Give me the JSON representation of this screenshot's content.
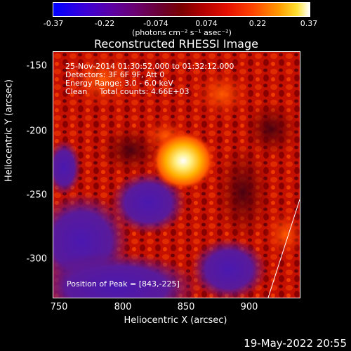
{
  "colorbar": {
    "ticks": [
      "-0.37",
      "-0.22",
      "-0.074",
      "0.074",
      "0.22",
      "0.37"
    ],
    "unit": "(photons cm⁻² s⁻¹ asec⁻²)"
  },
  "title": "Reconstructed RHESSI Image",
  "annotations": {
    "time": "25-Nov-2014 01:30:52.000 to 01:32:12.000",
    "detectors": "Detectors: 3F 6F 9F, Att 0",
    "energy": "Energy Range: 3.0 - 6.0 keV",
    "method": "Clean     Total counts: 4.66E+03",
    "peak": "Position of Peak = [843,-225]"
  },
  "axes": {
    "xlabel": "Heliocentric X (arcsec)",
    "ylabel": "Heliocentric Y (arcsec)",
    "xticks": [
      "750",
      "800",
      "850",
      "900"
    ],
    "yticks": [
      "-150",
      "-200",
      "-250",
      "-300"
    ]
  },
  "footer": {
    "timestamp": "19-May-2022 20:55"
  }
}
